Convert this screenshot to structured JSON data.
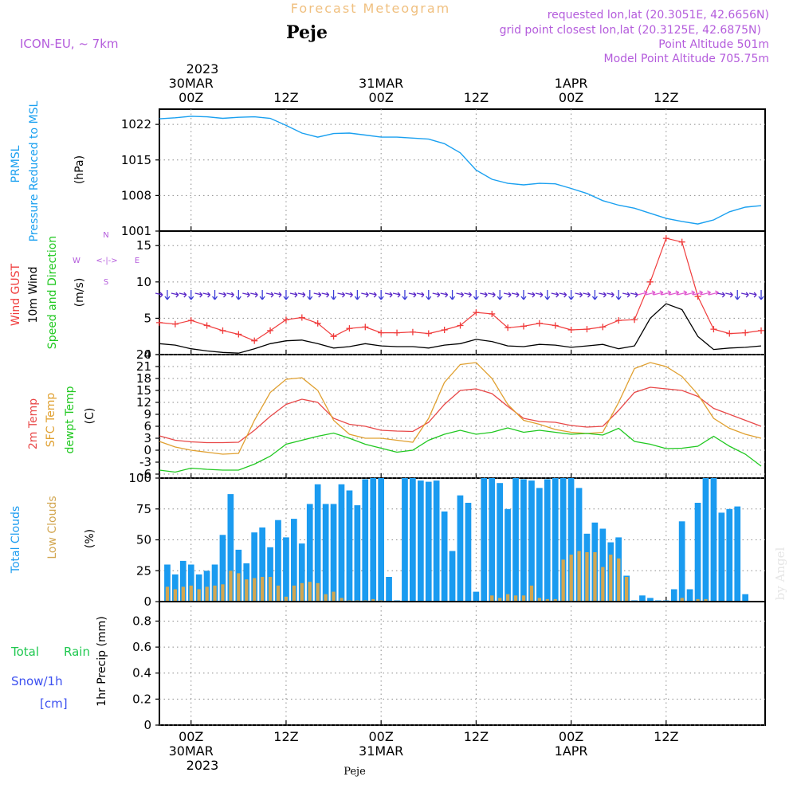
{
  "header": {
    "title": "Forecast Meteogram",
    "location": "Peje",
    "model": "ICON-EU, ~ 7km",
    "requested": "requested lon,lat (20.3051E, 42.6656N)",
    "grid_point": "grid point closest lon,lat (20.3125E, 42.6875N)",
    "point_altitude": "Point Altitude 501m",
    "model_altitude": "Model Point Altitude 705.75m",
    "watermark": "by Angel",
    "footer_label": "Peje"
  },
  "colors": {
    "pressure": "#1aa0f0",
    "gust": "#f03c3c",
    "wind": "#000000",
    "temp": "#e84848",
    "sfc": "#e0a030",
    "dewpt": "#20c820",
    "total_clouds": "#1a9bf0",
    "low_clouds": "#d2a650",
    "title": "#f0c080",
    "meta": "#b45cdc",
    "rain": "#20c850",
    "snow": "#3c50f0"
  },
  "time_axis": {
    "top_year": "2023",
    "bottom_year": "2023",
    "ticks": [
      {
        "hour": 0,
        "top": [
          "30MAR",
          "00Z"
        ],
        "bottom": [
          "00Z",
          "30MAR"
        ]
      },
      {
        "hour": 12,
        "top": [
          "12Z"
        ],
        "bottom": [
          "12Z"
        ]
      },
      {
        "hour": 24,
        "top": [
          "31MAR",
          "00Z"
        ],
        "bottom": [
          "00Z",
          "31MAR"
        ]
      },
      {
        "hour": 36,
        "top": [
          "12Z"
        ],
        "bottom": [
          "12Z"
        ]
      },
      {
        "hour": 48,
        "top": [
          "1APR",
          "00Z"
        ],
        "bottom": [
          "00Z",
          "1APR"
        ]
      },
      {
        "hour": 60,
        "top": [
          "12Z"
        ],
        "bottom": [
          "12Z"
        ]
      }
    ]
  },
  "panels": {
    "pressure": {
      "labels": [
        "PRMSL",
        "Pressure Reduced to MSL",
        "(hPa)"
      ],
      "ticks": [
        "1022",
        "1015",
        "1008",
        "1001"
      ]
    },
    "wind": {
      "labels": [
        "Wind GUST",
        "10m Wind",
        "Speed and Direction",
        "(m/s)"
      ],
      "ticks": [
        "15",
        "10",
        "5",
        "0"
      ],
      "compass": {
        "n": "N",
        "s": "S",
        "e": "E",
        "w": "W",
        "arrows": "<-|->"
      }
    },
    "temp": {
      "labels": [
        "2m Temp",
        "SFC Temp",
        "dewpt Temp",
        "(C)"
      ],
      "ticks": [
        "24",
        "21",
        "18",
        "15",
        "12",
        "9",
        "6",
        "3",
        "0",
        "-3",
        "-6"
      ]
    },
    "clouds": {
      "labels": [
        "Total Clouds",
        "Low Clouds",
        "(%)"
      ],
      "ticks": [
        "100",
        "75",
        "50",
        "25",
        "0"
      ]
    },
    "precip": {
      "labels": [
        "Total",
        "Rain",
        "Snow/1h",
        "[cm]",
        "1hr Precip (mm)"
      ],
      "ticks": [
        "0.8",
        "0.6",
        "0.4",
        "0.2",
        "0"
      ]
    }
  },
  "chart_data": [
    {
      "type": "line",
      "title": "PRMSL Pressure Reduced to MSL",
      "ylabel": "(hPa)",
      "ylim": [
        1001,
        1025
      ],
      "x": [
        -4,
        -2,
        0,
        2,
        4,
        6,
        8,
        10,
        12,
        14,
        16,
        18,
        20,
        22,
        24,
        26,
        28,
        30,
        32,
        34,
        36,
        38,
        40,
        42,
        44,
        46,
        48,
        50,
        52,
        54,
        56,
        58,
        60,
        62,
        64,
        66,
        68,
        70,
        72
      ],
      "series": [
        {
          "name": "PRMSL",
          "values": [
            1023.1,
            1023.3,
            1023.6,
            1023.5,
            1023.2,
            1023.4,
            1023.5,
            1023.2,
            1021.8,
            1020.3,
            1019.5,
            1020.2,
            1020.3,
            1019.9,
            1019.5,
            1019.5,
            1019.3,
            1019.1,
            1018.2,
            1016.4,
            1013.0,
            1011.2,
            1010.4,
            1010.1,
            1010.4,
            1010.3,
            1009.4,
            1008.4,
            1007.0,
            1006.1,
            1005.5,
            1004.5,
            1003.5,
            1002.9,
            1002.4,
            1003.2,
            1004.8,
            1005.7,
            1006.0
          ]
        }
      ]
    },
    {
      "type": "line",
      "title": "Wind GUST / 10m Wind Speed and Direction",
      "ylabel": "(m/s)",
      "ylim": [
        0,
        17
      ],
      "x": [
        -4,
        -2,
        0,
        2,
        4,
        6,
        8,
        10,
        12,
        14,
        16,
        18,
        20,
        22,
        24,
        26,
        28,
        30,
        32,
        34,
        36,
        38,
        40,
        42,
        44,
        46,
        48,
        50,
        52,
        54,
        56,
        58,
        60,
        62,
        64,
        66,
        68,
        70,
        72
      ],
      "series": [
        {
          "name": "Wind GUST",
          "values": [
            4.4,
            4.2,
            4.7,
            4.0,
            3.3,
            2.8,
            1.9,
            3.3,
            4.8,
            5.1,
            4.3,
            2.5,
            3.6,
            3.8,
            3.0,
            3.0,
            3.1,
            2.9,
            3.4,
            4.0,
            5.8,
            5.6,
            3.7,
            3.9,
            4.3,
            4.0,
            3.4,
            3.5,
            3.8,
            4.7,
            4.8,
            10.0,
            16.0,
            15.5,
            8.0,
            3.5,
            2.9,
            3.0,
            3.3
          ]
        },
        {
          "name": "10m Wind",
          "values": [
            1.5,
            1.3,
            0.8,
            0.5,
            0.3,
            0.2,
            0.8,
            1.5,
            1.9,
            2.0,
            1.5,
            0.9,
            1.1,
            1.5,
            1.2,
            1.1,
            1.1,
            0.9,
            1.3,
            1.5,
            2.1,
            1.8,
            1.2,
            1.1,
            1.4,
            1.3,
            1.0,
            1.2,
            1.4,
            0.8,
            1.2,
            5.0,
            7.0,
            6.2,
            2.5,
            0.7,
            0.9,
            1.0,
            1.2
          ]
        }
      ]
    },
    {
      "type": "line",
      "title": "2m Temp / SFC Temp / dewpt Temp",
      "ylabel": "(C)",
      "ylim": [
        -7,
        24
      ],
      "x": [
        -4,
        -2,
        0,
        2,
        4,
        6,
        8,
        10,
        12,
        14,
        16,
        18,
        20,
        22,
        24,
        26,
        28,
        30,
        32,
        34,
        36,
        38,
        40,
        42,
        44,
        46,
        48,
        50,
        52,
        54,
        56,
        58,
        60,
        62,
        64,
        66,
        68,
        70,
        72
      ],
      "series": [
        {
          "name": "2m Temp",
          "values": [
            3.6,
            2.5,
            2.1,
            1.9,
            1.9,
            2.0,
            5.0,
            8.5,
            11.5,
            12.8,
            12.0,
            8.0,
            6.5,
            6.0,
            5.0,
            4.8,
            4.7,
            7.0,
            11.5,
            15.0,
            15.4,
            14.2,
            11.0,
            8.0,
            7.2,
            7.0,
            6.2,
            5.8,
            6.0,
            10.0,
            14.5,
            15.8,
            15.4,
            15.0,
            13.5,
            10.5,
            9.0,
            7.5,
            6.0
          ]
        },
        {
          "name": "SFC Temp",
          "values": [
            2.2,
            0.8,
            0.0,
            -0.5,
            -1.0,
            -0.8,
            7.5,
            14.5,
            17.8,
            18.2,
            15.0,
            7.5,
            4.0,
            3.0,
            3.0,
            2.5,
            2.0,
            8.0,
            17.0,
            21.5,
            22.0,
            18.0,
            11.5,
            7.5,
            6.5,
            5.2,
            4.5,
            4.2,
            4.5,
            12.0,
            20.5,
            22.0,
            21.0,
            18.5,
            14.0,
            8.0,
            5.5,
            4.0,
            3.0
          ]
        },
        {
          "name": "dewpt Temp",
          "values": [
            -5.0,
            -5.5,
            -4.5,
            -4.8,
            -5.0,
            -5.0,
            -3.5,
            -1.5,
            1.5,
            2.5,
            3.5,
            4.3,
            3.0,
            1.5,
            0.5,
            -0.5,
            0.0,
            2.5,
            4.0,
            5.0,
            4.0,
            4.5,
            5.6,
            4.5,
            5.0,
            4.5,
            4.0,
            4.2,
            3.8,
            5.5,
            2.2,
            1.5,
            0.4,
            0.5,
            1.0,
            3.5,
            1.0,
            -1.0,
            -4.0
          ]
        }
      ]
    },
    {
      "type": "bar",
      "title": "Total Clouds / Low Clouds",
      "ylabel": "(%)",
      "ylim": [
        0,
        100
      ],
      "x_start_hour": -4,
      "x_step_hours": 1,
      "series": [
        {
          "name": "Total Clouds",
          "values": [
            38,
            30,
            22,
            33,
            30,
            22,
            25,
            30,
            54,
            87,
            42,
            31,
            56,
            60,
            44,
            66,
            52,
            67,
            47,
            79,
            95,
            79,
            79,
            95,
            90,
            78,
            99,
            100,
            100,
            20,
            1,
            100,
            100,
            98,
            97,
            98,
            73,
            41,
            86,
            80,
            8,
            100,
            100,
            96,
            75,
            100,
            99,
            98,
            92,
            99,
            100,
            100,
            100,
            92,
            55,
            64,
            59,
            48,
            52,
            21,
            1,
            5,
            3,
            1,
            1,
            10,
            65,
            10,
            80,
            100,
            100,
            72,
            75,
            77,
            6
          ]
        },
        {
          "name": "Low Clouds",
          "values": [
            5,
            12,
            10,
            12,
            13,
            10,
            12,
            13,
            14,
            25,
            23,
            18,
            19,
            20,
            20,
            13,
            4,
            13,
            15,
            16,
            15,
            6,
            8,
            3,
            1,
            1,
            1,
            2,
            1,
            0,
            0,
            0,
            0,
            0,
            0,
            0,
            0,
            0,
            0,
            0,
            0,
            0,
            5,
            3,
            6,
            5,
            5,
            13,
            3,
            2,
            2,
            34,
            38,
            41,
            40,
            40,
            28,
            38,
            35,
            20,
            0,
            0,
            0,
            0,
            0,
            0,
            3,
            0,
            2,
            2,
            0,
            0,
            0,
            0,
            0
          ]
        }
      ]
    },
    {
      "type": "line",
      "title": "1hr Precip (mm)",
      "ylabel": "1hr Precip (mm)",
      "ylim": [
        0,
        0.95
      ],
      "series": [
        {
          "name": "Total Rain",
          "values": []
        },
        {
          "name": "Snow/1h",
          "values": []
        }
      ]
    }
  ]
}
